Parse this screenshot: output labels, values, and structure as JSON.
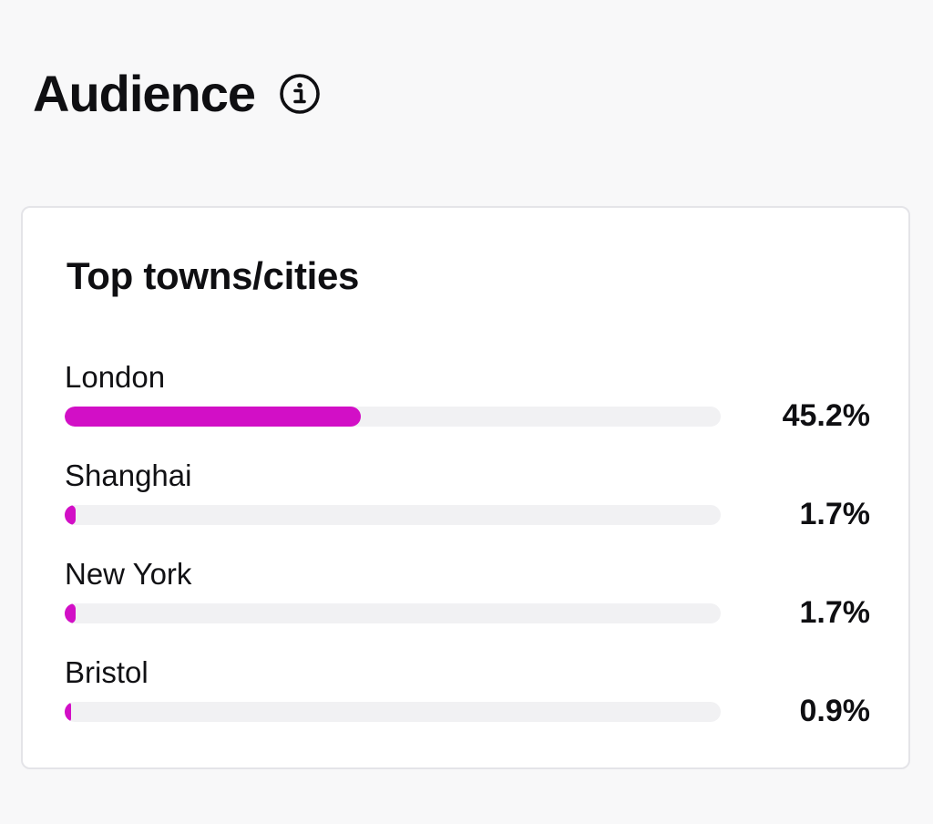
{
  "header": {
    "title": "Audience",
    "info_icon": "info-circle-icon"
  },
  "card": {
    "title": "Top towns/cities",
    "cities": [
      {
        "name": "London",
        "percent_label": "45.2%",
        "value": 45.2
      },
      {
        "name": "Shanghai",
        "percent_label": "1.7%",
        "value": 1.7
      },
      {
        "name": "New York",
        "percent_label": "1.7%",
        "value": 1.7
      },
      {
        "name": "Bristol",
        "percent_label": "0.9%",
        "value": 0.9
      }
    ]
  },
  "colors": {
    "bar_fill": "#d20fc6",
    "bar_track": "#f1f1f3",
    "background": "#f8f8f9",
    "card": "#ffffff"
  }
}
